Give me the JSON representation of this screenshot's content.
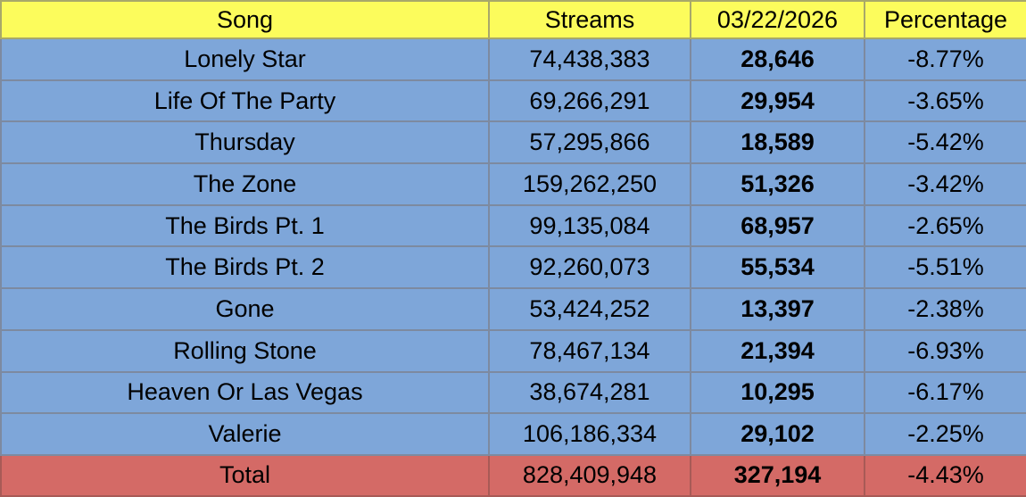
{
  "header": {
    "song": "Song",
    "streams": "Streams",
    "date": "03/22/2026",
    "percentage": "Percentage"
  },
  "rows": [
    {
      "song": "Lonely Star",
      "streams": "74,438,383",
      "daily": "28,646",
      "pct": "-8.77%"
    },
    {
      "song": "Life Of The Party",
      "streams": "69,266,291",
      "daily": "29,954",
      "pct": "-3.65%"
    },
    {
      "song": "Thursday",
      "streams": "57,295,866",
      "daily": "18,589",
      "pct": "-5.42%"
    },
    {
      "song": "The Zone",
      "streams": "159,262,250",
      "daily": "51,326",
      "pct": "-3.42%"
    },
    {
      "song": "The Birds Pt. 1",
      "streams": "99,135,084",
      "daily": "68,957",
      "pct": "-2.65%"
    },
    {
      "song": "The Birds Pt. 2",
      "streams": "92,260,073",
      "daily": "55,534",
      "pct": "-5.51%"
    },
    {
      "song": "Gone",
      "streams": "53,424,252",
      "daily": "13,397",
      "pct": "-2.38%"
    },
    {
      "song": "Rolling Stone",
      "streams": "78,467,134",
      "daily": "21,394",
      "pct": "-6.93%"
    },
    {
      "song": "Heaven Or Las Vegas",
      "streams": "38,674,281",
      "daily": "10,295",
      "pct": "-6.17%"
    },
    {
      "song": "Valerie",
      "streams": "106,186,334",
      "daily": "29,102",
      "pct": "-2.25%"
    }
  ],
  "total": {
    "song": "Total",
    "streams": "828,409,948",
    "daily": "327,194",
    "pct": "-4.43%"
  },
  "colors": {
    "header_bg": "#fcfc5c",
    "row_bg": "#7ea6d9",
    "total_bg": "#d46a66",
    "grid": "#7d8aa0"
  }
}
